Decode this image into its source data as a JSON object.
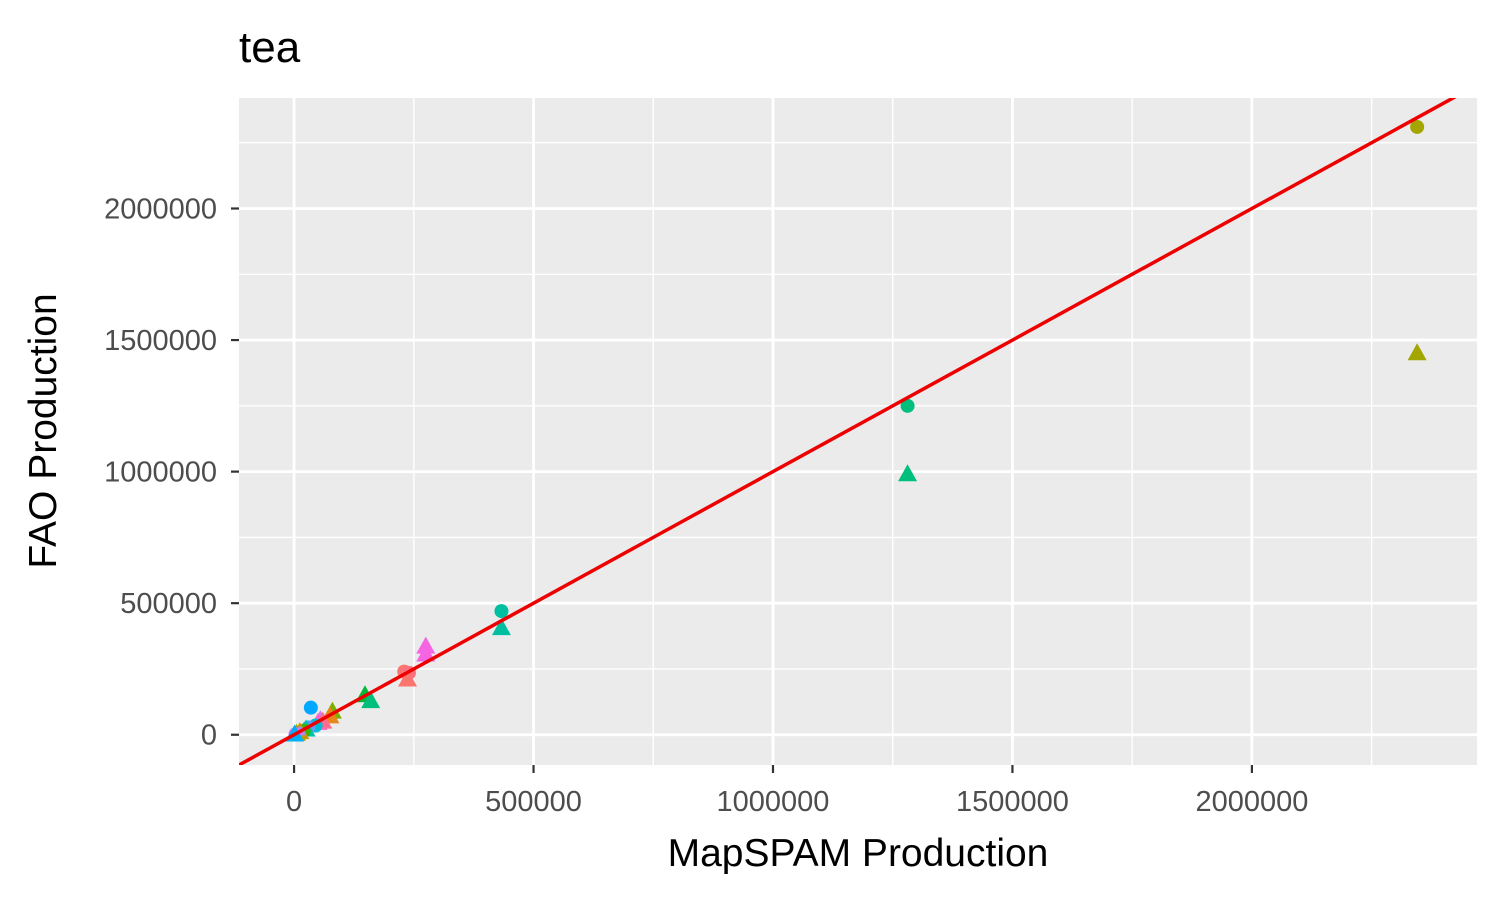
{
  "chart_data": {
    "type": "scatter",
    "title": "tea",
    "xlabel": "MapSPAM Production",
    "ylabel": "FAO Production",
    "xlim": [
      -115000,
      2470000
    ],
    "ylim": [
      -115000,
      2420000
    ],
    "x_ticks": [
      0,
      500000,
      1000000,
      1500000,
      2000000
    ],
    "x_tick_labels": [
      "0",
      "500000",
      "1000000",
      "1500000",
      "2000000"
    ],
    "y_ticks": [
      0,
      500000,
      1000000,
      1500000,
      2000000
    ],
    "y_tick_labels": [
      "0",
      "500000",
      "1000000",
      "1500000",
      "2000000"
    ],
    "grid": true,
    "legend": "none",
    "reference_line": {
      "slope": 1,
      "intercept": 0,
      "color": "#ee0000"
    },
    "points": [
      {
        "x": 2345000,
        "y": 2310000,
        "shape": "circle",
        "color": "#a3a500"
      },
      {
        "x": 2345000,
        "y": 1450000,
        "shape": "triangle",
        "color": "#a3a500"
      },
      {
        "x": 1281000,
        "y": 1250000,
        "shape": "circle",
        "color": "#00bf7d"
      },
      {
        "x": 1281000,
        "y": 990000,
        "shape": "triangle",
        "color": "#00bf7d"
      },
      {
        "x": 433000,
        "y": 470000,
        "shape": "circle",
        "color": "#00bfa0"
      },
      {
        "x": 433000,
        "y": 405000,
        "shape": "triangle",
        "color": "#00bfa0"
      },
      {
        "x": 275000,
        "y": 335000,
        "shape": "triangle",
        "color": "#f564e3"
      },
      {
        "x": 275000,
        "y": 305000,
        "shape": "triangle",
        "color": "#f564e3"
      },
      {
        "x": 230000,
        "y": 240000,
        "shape": "circle",
        "color": "#f8766d"
      },
      {
        "x": 240000,
        "y": 235000,
        "shape": "circle",
        "color": "#fc717f"
      },
      {
        "x": 237000,
        "y": 210000,
        "shape": "triangle",
        "color": "#f8766d"
      },
      {
        "x": 148000,
        "y": 150000,
        "shape": "triangle",
        "color": "#00ba38"
      },
      {
        "x": 160000,
        "y": 128000,
        "shape": "triangle",
        "color": "#00bf7d"
      },
      {
        "x": 80000,
        "y": 88000,
        "shape": "triangle",
        "color": "#7cae00"
      },
      {
        "x": 75000,
        "y": 70000,
        "shape": "triangle",
        "color": "#e7861b"
      },
      {
        "x": 35000,
        "y": 103000,
        "shape": "circle",
        "color": "#00a9ff"
      },
      {
        "x": 55000,
        "y": 55000,
        "shape": "triangle",
        "color": "#c77cff"
      },
      {
        "x": 50000,
        "y": 45000,
        "shape": "triangle",
        "color": "#fd61d1"
      },
      {
        "x": 60000,
        "y": 50000,
        "shape": "triangle",
        "color": "#ff6c91"
      },
      {
        "x": 45000,
        "y": 35000,
        "shape": "circle",
        "color": "#00bcd8"
      },
      {
        "x": 30000,
        "y": 28000,
        "shape": "circle",
        "color": "#619cff"
      },
      {
        "x": 25000,
        "y": 20000,
        "shape": "triangle",
        "color": "#00c1aa"
      },
      {
        "x": 20000,
        "y": 15000,
        "shape": "circle",
        "color": "#39b600"
      },
      {
        "x": 12000,
        "y": 10000,
        "shape": "triangle",
        "color": "#d89000"
      },
      {
        "x": 8000,
        "y": 6000,
        "shape": "circle",
        "color": "#9590ff"
      },
      {
        "x": 5000,
        "y": 4000,
        "shape": "triangle",
        "color": "#a3a500"
      },
      {
        "x": 3000,
        "y": 2000,
        "shape": "circle",
        "color": "#e76bf3"
      },
      {
        "x": 1000,
        "y": 1000,
        "shape": "triangle",
        "color": "#00b0f6"
      }
    ]
  }
}
